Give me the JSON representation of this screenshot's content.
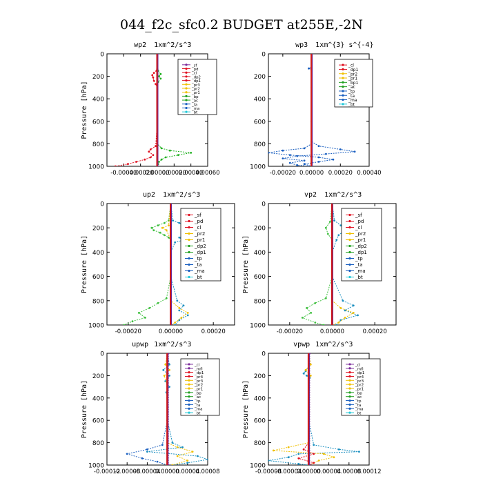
{
  "figure": {
    "title": "044_f2c_sfc0.2  BUDGET at255E,-2N"
  },
  "chart_data": [
    {
      "type": "line",
      "title": "wp2",
      "units": "1xm^2/s^3",
      "ylabel": "Pressure [hPa]",
      "ylim": [
        1000,
        0
      ],
      "xlim": [
        -0.0006,
        0.0006
      ],
      "xticks": [
        "-0.00040",
        "-0.00020",
        "0.00000",
        "0.00020",
        "0.00040",
        "0.00060"
      ],
      "xtick_values": [
        -0.0004,
        -0.0002,
        0.0,
        0.0002,
        0.0004,
        0.0006
      ],
      "yticks": [
        "0",
        "200",
        "400",
        "600",
        "800",
        "1000"
      ],
      "legend_position": "top-right",
      "legend": [
        "_sf",
        "_pd",
        "_cl",
        "_dp2",
        "_dp1",
        "_pr3",
        "_pr2",
        "_pr1",
        "_bp",
        "_ac",
        "_ta",
        "_ma",
        "_bt"
      ],
      "legend_colors": [
        "#7a2a9a",
        "#e01020",
        "#e01020",
        "#e01020",
        "#e01020",
        "#f0c000",
        "#f0c000",
        "#f0c000",
        "#20a020",
        "#20a020",
        "#1a5fc0",
        "#1a5fc0",
        "#20c8d8"
      ],
      "series": [
        {
          "name": "_pr1",
          "color": "#20b020",
          "p": [
            0,
            150,
            180,
            200,
            220,
            250,
            300,
            400,
            600,
            800,
            840,
            860,
            880,
            900,
            920,
            940,
            960,
            980,
            1000
          ],
          "x": [
            0,
            1e-05,
            4e-05,
            2e-05,
            4e-05,
            1e-05,
            0,
            0,
            0,
            0,
            5e-05,
            0.00015,
            0.0004,
            0.00025,
            0.0001,
            5e-05,
            2e-05,
            1e-05,
            0
          ]
        },
        {
          "name": "_dp1",
          "color": "#e01020",
          "p": [
            0,
            150,
            170,
            190,
            210,
            240,
            270,
            300,
            400,
            600,
            820,
            850,
            870,
            900,
            920,
            940,
            960,
            980,
            1000
          ],
          "x": [
            0,
            -1e-05,
            -4e-05,
            -6e-05,
            -5e-05,
            -4e-05,
            -2e-05,
            0,
            0,
            0,
            -2e-05,
            -8e-05,
            -0.0001,
            -5e-05,
            -8e-05,
            -0.00015,
            -0.00025,
            -0.00035,
            -0.0005
          ]
        },
        {
          "name": "_bt",
          "color": "#20c8d8",
          "p": [
            0,
            1000
          ],
          "x": [
            0,
            0
          ]
        },
        {
          "name": "_sf",
          "color": "#7a2a9a",
          "p": [
            0,
            1000
          ],
          "x": [
            4e-06,
            4e-06
          ]
        }
      ]
    },
    {
      "type": "line",
      "title": "wp3",
      "units": "1xm^{3} s^{-4}",
      "ylabel": "",
      "ylim": [
        1000,
        0
      ],
      "xlim": [
        -0.0003,
        0.0004
      ],
      "xticks": [
        "-0.00020",
        "0.00000",
        "0.00020",
        "0.00040"
      ],
      "xtick_values": [
        -0.0002,
        0.0,
        0.0002,
        0.0004
      ],
      "yticks": [
        "0",
        "200",
        "400",
        "600",
        "800",
        "1000"
      ],
      "legend_position": "top-right",
      "legend": [
        "_cl",
        "_dp1",
        "_pr2",
        "_pr1",
        "_bp1",
        "_ac",
        "_tp",
        "_ta",
        "_ma",
        "_bt"
      ],
      "legend_colors": [
        "#e01020",
        "#e01020",
        "#f0c000",
        "#f0c000",
        "#20a020",
        "#20a020",
        "#1a5fc0",
        "#1a5fc0",
        "#1a5fc0",
        "#20c8d8"
      ],
      "series": [
        {
          "name": "_tp",
          "color": "#1a5fc0",
          "p": [
            0,
            120,
            130,
            140,
            150,
            300,
            600,
            780,
            820,
            850,
            870,
            890,
            910,
            930,
            950,
            970,
            990,
            1000
          ],
          "x": [
            0,
            0,
            -2e-05,
            0,
            0,
            0,
            0,
            0,
            5e-05,
            0.0002,
            0.0003,
            0.0001,
            -0.0001,
            -0.0002,
            -5e-05,
            -0.00015,
            -0.0001,
            0
          ]
        },
        {
          "name": "_ta",
          "color": "#1a5fc0",
          "p": [
            0,
            600,
            800,
            840,
            860,
            880,
            900,
            920,
            940,
            960,
            980,
            1000
          ],
          "x": [
            0,
            0,
            0,
            -5e-05,
            -0.0002,
            -0.0003,
            -0.00015,
            5e-05,
            0.00015,
            5e-05,
            -5e-05,
            0
          ]
        },
        {
          "name": "_dp1",
          "color": "#e01020",
          "p": [
            0,
            1000
          ],
          "x": [
            0,
            0
          ]
        }
      ]
    },
    {
      "type": "line",
      "title": "up2",
      "units": "1xm^2/s^3",
      "ylabel": "Pressure [hPa]",
      "ylim": [
        1000,
        0
      ],
      "xlim": [
        -0.0003,
        0.0003
      ],
      "xticks": [
        "-0.00020",
        "0.00000",
        "0.00020"
      ],
      "xtick_values": [
        -0.0002,
        0.0,
        0.0002
      ],
      "yticks": [
        "0",
        "200",
        "400",
        "600",
        "800",
        "1000"
      ],
      "legend_position": "top-right",
      "legend": [
        "_sf",
        "_pd",
        "_cl",
        "_pr2",
        "_pr1",
        "_dp2",
        "_dp1",
        "_tp",
        "_ta",
        "_ma",
        "_bt"
      ],
      "legend_colors": [
        "#e01020",
        "#e01020",
        "#e01020",
        "#f0c000",
        "#f0c000",
        "#20a020",
        "#20a020",
        "#1a5fc0",
        "#1a5fc0",
        "#1a5fc0",
        "#20c8d8"
      ],
      "series": [
        {
          "name": "_dp1",
          "color": "#40c040",
          "p": [
            0,
            140,
            160,
            180,
            200,
            220,
            240,
            260,
            280,
            300,
            400,
            600,
            780,
            820,
            860,
            900,
            940,
            970,
            1000
          ],
          "x": [
            0,
            -1e-05,
            -3e-05,
            -6e-05,
            -9e-05,
            -8e-05,
            -5e-05,
            -3e-05,
            -1e-05,
            0,
            0,
            0,
            -2e-05,
            -6e-05,
            -0.0001,
            -0.00015,
            -0.00012,
            -0.00018,
            -0.00022
          ]
        },
        {
          "name": "_tp",
          "color": "#1a8fc0",
          "p": [
            0,
            140,
            160,
            180,
            200,
            220,
            240,
            260,
            280,
            300,
            320,
            400,
            600,
            800,
            840,
            880,
            920,
            960,
            1000
          ],
          "x": [
            0,
            1e-05,
            4e-05,
            8e-05,
            0.00012,
            0.0001,
            6e-05,
            8e-05,
            4e-05,
            6e-05,
            2e-05,
            0,
            0,
            3e-05,
            6e-05,
            4e-05,
            8e-05,
            4e-05,
            2e-05
          ]
        },
        {
          "name": "_pr1",
          "color": "#f0c000",
          "p": [
            0,
            180,
            200,
            220,
            300,
            800,
            860,
            900,
            940,
            980,
            1000
          ],
          "x": [
            0,
            -1e-05,
            -4e-05,
            -2e-05,
            0,
            0,
            4e-05,
            8e-05,
            5e-05,
            2e-05,
            0
          ]
        },
        {
          "name": "_bt",
          "color": "#20c8d8",
          "p": [
            0,
            1000
          ],
          "x": [
            0,
            0
          ]
        }
      ]
    },
    {
      "type": "line",
      "title": "vp2",
      "units": "1xm^2/s^3",
      "ylabel": "Pressure [hPa]",
      "ylim": [
        1000,
        0
      ],
      "xlim": [
        -0.0003,
        0.0003
      ],
      "xticks": [
        "-0.00020",
        "0.00000",
        "0.00020"
      ],
      "xtick_values": [
        -0.0002,
        0.0,
        0.0002
      ],
      "yticks": [
        "0",
        "200",
        "400",
        "600",
        "800",
        "1000"
      ],
      "legend_position": "top-right",
      "legend": [
        "_sf",
        "_pd",
        "_cl",
        "_pr2",
        "_pr1",
        "_dp2",
        "_dp1",
        "_tp",
        "_ta",
        "_ma",
        "_bt"
      ],
      "legend_colors": [
        "#e01020",
        "#e01020",
        "#e01020",
        "#f0c000",
        "#f0c000",
        "#20a020",
        "#20a020",
        "#1a5fc0",
        "#1a5fc0",
        "#1a5fc0",
        "#20c8d8"
      ],
      "series": [
        {
          "name": "_dp1",
          "color": "#40c040",
          "p": [
            0,
            150,
            200,
            250,
            300,
            600,
            780,
            820,
            860,
            900,
            940,
            980,
            1000
          ],
          "x": [
            0,
            -1e-05,
            -3e-05,
            -2e-05,
            0,
            0,
            -3e-05,
            -8e-05,
            -0.00012,
            -0.0001,
            -0.00014,
            -8e-05,
            -4e-05
          ]
        },
        {
          "name": "_tp",
          "color": "#1a8fc0",
          "p": [
            0,
            140,
            180,
            220,
            260,
            300,
            400,
            600,
            800,
            840,
            880,
            920,
            960,
            1000
          ],
          "x": [
            0,
            1e-05,
            4e-05,
            6e-05,
            3e-05,
            2e-05,
            0,
            0,
            5e-05,
            0.0001,
            6e-05,
            0.00012,
            4e-05,
            2e-05
          ]
        },
        {
          "name": "_pr1",
          "color": "#f0c000",
          "p": [
            0,
            800,
            860,
            900,
            940,
            980,
            1000
          ],
          "x": [
            0,
            0,
            4e-05,
            0.0001,
            6e-05,
            3e-05,
            0
          ]
        },
        {
          "name": "_bt",
          "color": "#20c8d8",
          "p": [
            0,
            1000
          ],
          "x": [
            0,
            0
          ]
        }
      ]
    },
    {
      "type": "line",
      "title": "upwp",
      "units": "1xm^2/s^3",
      "ylabel": "Pressure [hPa]",
      "ylim": [
        1000,
        0
      ],
      "xlim": [
        -0.00012,
        8e-05
      ],
      "xticks": [
        "-0.00012",
        "-0.00008",
        "-0.00004",
        "0.00000",
        "0.00004",
        "0.00008"
      ],
      "xtick_values": [
        -0.00012,
        -8e-05,
        -4e-05,
        0.0,
        4e-05,
        8e-05
      ],
      "yticks": [
        "0",
        "200",
        "400",
        "600",
        "800",
        "1000"
      ],
      "legend_position": "top-right",
      "legend": [
        "_cl",
        "_mfl",
        "_dp1",
        "_pr4",
        "_pr3",
        "_pr2",
        "_pr1",
        "_bp",
        "_ac",
        "_tp",
        "_ta",
        "_ma",
        "_bt"
      ],
      "legend_colors": [
        "#7a2a9a",
        "#7a2a9a",
        "#e01020",
        "#e01020",
        "#f0c000",
        "#f0c000",
        "#f0c000",
        "#20a020",
        "#20a020",
        "#1a5fc0",
        "#1a5fc0",
        "#1a5fc0",
        "#20c8d8"
      ],
      "series": [
        {
          "name": "_tp",
          "color": "#1a8fc0",
          "p": [
            0,
            100,
            150,
            200,
            250,
            300,
            350,
            400,
            600,
            800,
            840,
            880,
            920,
            950,
            980,
            1000
          ],
          "x": [
            0,
            4e-06,
            -8e-06,
            4e-06,
            -4e-06,
            4e-06,
            -2e-06,
            0,
            0,
            1e-05,
            3e-05,
            -4e-05,
            6e-05,
            8e-05,
            4e-05,
            1e-05
          ]
        },
        {
          "name": "_ta",
          "color": "#1a5fc0",
          "p": [
            0,
            600,
            820,
            860,
            900,
            940,
            970,
            1000
          ],
          "x": [
            0,
            0,
            -1e-05,
            -4e-05,
            -8e-05,
            -5e-05,
            -2e-05,
            0
          ]
        },
        {
          "name": "_pr1",
          "color": "#f0c000",
          "p": [
            0,
            100,
            150,
            200,
            300,
            800,
            840,
            880,
            920,
            960,
            1000
          ],
          "x": [
            0,
            -4e-06,
            4e-06,
            -6e-06,
            0,
            0,
            2e-05,
            5e-05,
            2e-05,
            4e-05,
            1e-05
          ]
        },
        {
          "name": "_bt",
          "color": "#20c8d8",
          "p": [
            0,
            1000
          ],
          "x": [
            0,
            0
          ]
        },
        {
          "name": "_cl",
          "color": "#7a2a9a",
          "p": [
            0,
            1000
          ],
          "x": [
            2e-06,
            2e-06
          ]
        }
      ]
    },
    {
      "type": "line",
      "title": "vpwp",
      "units": "1xm^2/s^3",
      "ylabel": "Pressure [hPa]",
      "ylim": [
        1000,
        0
      ],
      "xlim": [
        -8e-05,
        0.00012
      ],
      "xticks": [
        "-0.00008",
        "-0.00004",
        "0.00000",
        "0.00004",
        "0.00008",
        "0.00012"
      ],
      "xtick_values": [
        -8e-05,
        -4e-05,
        0.0,
        4e-05,
        8e-05,
        0.00012
      ],
      "yticks": [
        "0",
        "200",
        "400",
        "600",
        "800",
        "1000"
      ],
      "legend_position": "top-right",
      "legend": [
        "_cl",
        "_mfl",
        "_dp1",
        "_pr4",
        "_pr3",
        "_pr2",
        "_pr1",
        "_bp",
        "_ac",
        "_tp",
        "_ta",
        "_ma",
        "_bt"
      ],
      "legend_colors": [
        "#7a2a9a",
        "#7a2a9a",
        "#e01020",
        "#e01020",
        "#f0c000",
        "#f0c000",
        "#f0c000",
        "#20a020",
        "#20a020",
        "#1a5fc0",
        "#1a5fc0",
        "#1a5fc0",
        "#20c8d8"
      ],
      "series": [
        {
          "name": "_tp",
          "color": "#1a8fc0",
          "p": [
            0,
            120,
            160,
            180,
            200,
            220,
            260,
            300,
            600,
            820,
            860,
            880,
            900,
            930,
            960,
            990,
            1000
          ],
          "x": [
            0,
            0,
            -6e-06,
            -1e-05,
            -4e-06,
            2e-06,
            0,
            0,
            0,
            1e-05,
            6e-05,
            0.0001,
            -2e-05,
            -4e-05,
            -8e-05,
            -2e-05,
            0
          ]
        },
        {
          "name": "_pr1",
          "color": "#f0c000",
          "p": [
            0,
            100,
            150,
            200,
            250,
            800,
            840,
            870,
            900,
            930,
            960,
            1000
          ],
          "x": [
            0,
            4e-06,
            -6e-06,
            4e-06,
            0,
            0,
            -4e-05,
            -7e-05,
            3e-05,
            5e-05,
            2e-05,
            0
          ]
        },
        {
          "name": "_dp1",
          "color": "#e01020",
          "p": [
            0,
            800,
            860,
            900,
            940,
            980,
            1000
          ],
          "x": [
            0,
            0,
            -1e-05,
            1e-05,
            -2e-05,
            1e-05,
            0
          ]
        },
        {
          "name": "_bt",
          "color": "#20c8d8",
          "p": [
            0,
            1000
          ],
          "x": [
            0,
            0
          ]
        },
        {
          "name": "_cl",
          "color": "#7a2a9a",
          "p": [
            0,
            1000
          ],
          "x": [
            2e-06,
            2e-06
          ]
        }
      ]
    }
  ]
}
